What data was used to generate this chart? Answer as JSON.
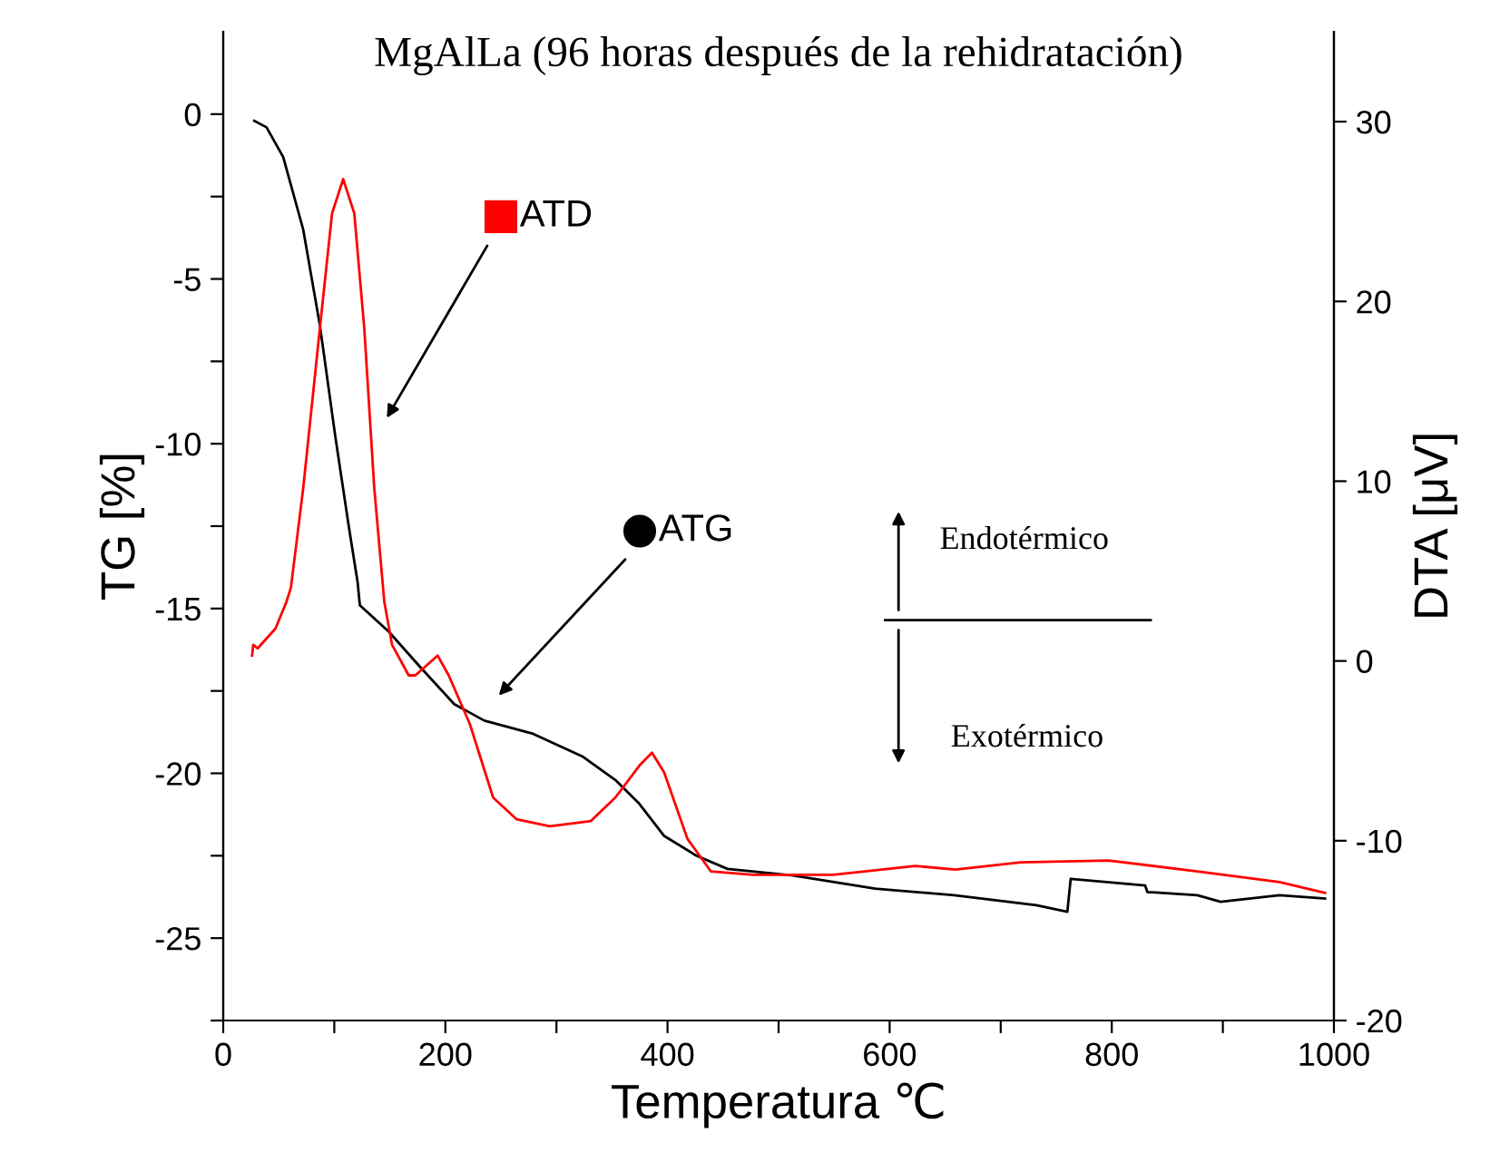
{
  "chart_data": {
    "type": "line",
    "title": "MgAlLa (96 horas después de la rehidratación)",
    "xlabel": "Temperatura ℃",
    "ylabel": "TG [%]",
    "y2label": "DTA [μV]",
    "xlim": [
      0,
      1000
    ],
    "xticks": [
      0,
      {
        "value": 100,
        "label": null
      },
      200,
      {
        "value": 300,
        "label": null
      },
      400,
      {
        "value": 500,
        "label": null
      },
      600,
      {
        "value": 700,
        "label": null
      },
      800,
      {
        "value": 900,
        "label": null
      },
      1000
    ],
    "ylim": [
      -27.5,
      2.5
    ],
    "yticks": [
      {
        "value": -27.5,
        "label": null
      },
      -25,
      {
        "value": -22.5,
        "label": null
      },
      -20,
      {
        "value": -17.5,
        "label": null
      },
      -15,
      {
        "value": -12.5,
        "label": null
      },
      -10,
      {
        "value": -7.5,
        "label": null
      },
      -5,
      {
        "value": -2.5,
        "label": null
      },
      0
    ],
    "y2lim": [
      -20,
      35
    ],
    "y2ticks": [
      -20,
      -10,
      0,
      10,
      20,
      30
    ],
    "legend": "top",
    "grid": false,
    "series": [
      {
        "name": "ATD",
        "color": "#ff0000",
        "axis": "y2",
        "x": [
          26,
          27,
          31,
          47,
          57,
          61,
          72,
          87,
          98,
          108,
          118,
          127,
          136,
          145,
          152,
          167,
          173,
          193,
          203,
          222,
          243,
          264,
          294,
          331,
          353,
          375,
          386,
          397,
          418,
          439,
          477,
          549,
          623,
          659,
          718,
          797,
          877,
          951,
          992
        ],
        "values": [
          0.3,
          0.9,
          0.7,
          1.8,
          3.3,
          4.1,
          9.6,
          18.5,
          24.9,
          26.8,
          24.9,
          18.5,
          9.6,
          3.3,
          0.9,
          -0.8,
          -0.8,
          0.3,
          -0.8,
          -3.5,
          -7.6,
          -8.8,
          -9.2,
          -8.9,
          -7.6,
          -5.8,
          -5.1,
          -6.2,
          -9.9,
          -11.7,
          -11.9,
          -11.9,
          -11.4,
          -11.6,
          -11.2,
          -11.1,
          -11.7,
          -12.3,
          -12.9
        ]
      },
      {
        "name": "ATG",
        "color": "#000000",
        "x": [
          28,
          39,
          54,
          72,
          87,
          101,
          113,
          121,
          123,
          149,
          178,
          208,
          235,
          279,
          324,
          353,
          374,
          397,
          426,
          454,
          513,
          587,
          658,
          732,
          760,
          763,
          830,
          832,
          877,
          898,
          951,
          992
        ],
        "values": [
          -0.2,
          -0.4,
          -1.3,
          -3.5,
          -6.4,
          -9.8,
          -12.5,
          -14.2,
          -14.9,
          -15.7,
          -16.8,
          -17.9,
          -18.4,
          -18.8,
          -19.5,
          -20.2,
          -20.9,
          -21.9,
          -22.5,
          -22.9,
          -23.1,
          -23.5,
          -23.7,
          -24.0,
          -24.2,
          -23.2,
          -23.4,
          -23.6,
          -23.7,
          -23.9,
          -23.7,
          -23.8
        ]
      }
    ],
    "annotations": [
      "Endotérmico",
      "Exotérmico"
    ]
  }
}
